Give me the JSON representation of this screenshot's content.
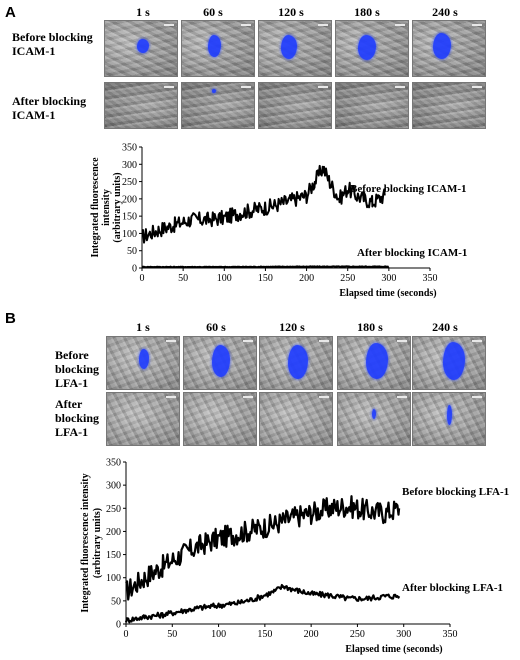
{
  "panel_a": {
    "letter": "A",
    "times": [
      "1 s",
      "60 s",
      "120 s",
      "180 s",
      "240 s"
    ],
    "row_before": [
      "Before blocking",
      "ICAM-1"
    ],
    "row_after": [
      "After blocking",
      "ICAM-1"
    ]
  },
  "panel_b": {
    "letter": "B",
    "times": [
      "1 s",
      "60 s",
      "120 s",
      "180 s",
      "240 s"
    ],
    "row_before": [
      "Before",
      "blocking",
      "LFA-1"
    ],
    "row_after": [
      "After",
      "blocking",
      "LFA-1"
    ]
  },
  "colors": {
    "fluorescence": "#1f3cff",
    "trace": "#000000"
  },
  "chart_data": [
    {
      "type": "line",
      "ylabel": [
        "Integrated fluorescence",
        "intensity",
        "(arbitrary units)"
      ],
      "xlabel": "Elapsed time (seconds)",
      "xlim": [
        0,
        350
      ],
      "ylim": [
        0,
        350
      ],
      "xticks": [
        0,
        50,
        100,
        150,
        200,
        250,
        300,
        350
      ],
      "yticks": [
        0,
        50,
        100,
        150,
        200,
        250,
        300,
        350
      ],
      "series": [
        {
          "name": "Before blocking ICAM-1",
          "x": [
            0,
            20,
            40,
            60,
            80,
            100,
            120,
            140,
            160,
            180,
            200,
            210,
            220,
            230,
            240,
            250,
            260,
            270,
            280,
            295
          ],
          "y": [
            90,
            110,
            125,
            140,
            140,
            145,
            160,
            170,
            180,
            195,
            210,
            250,
            290,
            240,
            200,
            230,
            210,
            200,
            190,
            210
          ]
        },
        {
          "name": "After blocking ICAM-1",
          "x": [
            0,
            100,
            200,
            300
          ],
          "y": [
            3,
            3,
            4,
            4
          ]
        }
      ]
    },
    {
      "type": "line",
      "ylabel": [
        "Integrated fluorescence intensity",
        "(arbitrary units)"
      ],
      "xlabel": "Elapsed time (seconds)",
      "xlim": [
        0,
        350
      ],
      "ylim": [
        0,
        350
      ],
      "xticks": [
        0,
        50,
        100,
        150,
        200,
        250,
        300,
        350
      ],
      "yticks": [
        0,
        50,
        100,
        150,
        200,
        250,
        300,
        350
      ],
      "series": [
        {
          "name": "Before blocking LFA-1",
          "x": [
            0,
            20,
            40,
            60,
            80,
            100,
            120,
            140,
            160,
            180,
            200,
            220,
            240,
            260,
            280,
            295
          ],
          "y": [
            70,
            100,
            125,
            150,
            170,
            185,
            195,
            205,
            215,
            230,
            240,
            250,
            255,
            245,
            240,
            250
          ]
        },
        {
          "name": "After blocking LFA-1",
          "x": [
            0,
            20,
            40,
            60,
            80,
            100,
            120,
            140,
            160,
            170,
            180,
            200,
            220,
            240,
            260,
            280,
            295
          ],
          "y": [
            8,
            15,
            20,
            28,
            35,
            40,
            45,
            55,
            70,
            82,
            75,
            65,
            62,
            55,
            55,
            60,
            60
          ]
        }
      ]
    }
  ]
}
